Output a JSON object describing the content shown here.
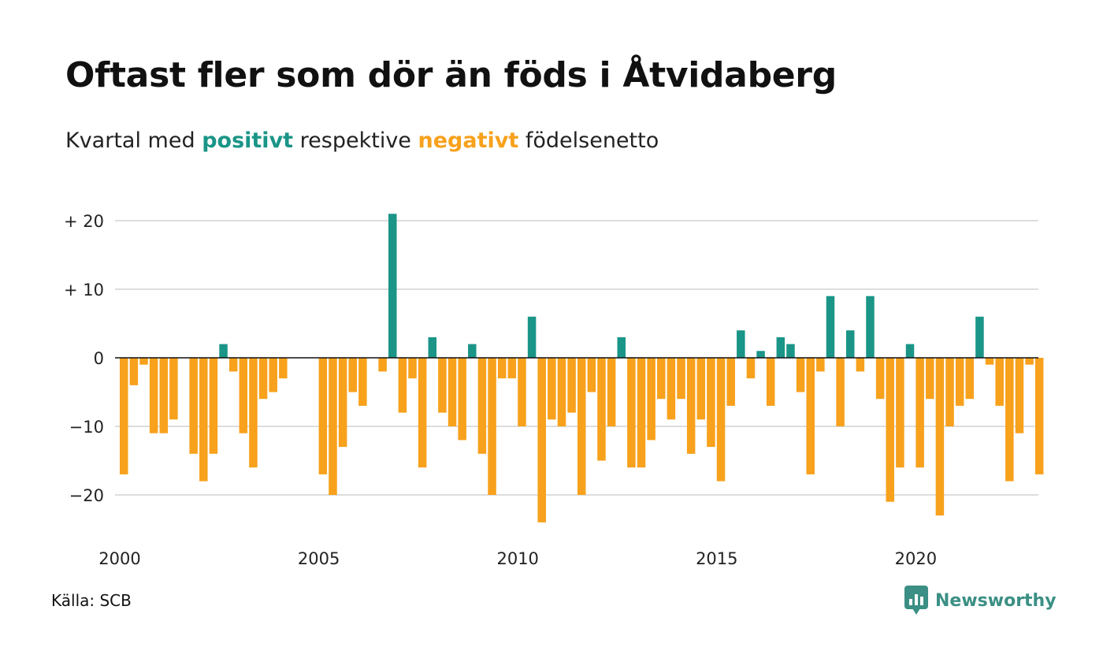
{
  "page": {
    "title": "Oftast fler som dör än föds i Åtvidaberg",
    "subtitle_parts": [
      "Kvartal med",
      "positivt",
      "respektive",
      "negativt",
      "födelsenetto"
    ],
    "source": "Källa: SCB",
    "brand": "Newsworthy",
    "colors": {
      "positive": "#1a9587",
      "negative": "#f7a11c",
      "brand": "#3b8f84",
      "grid": "#dddddd",
      "zero_line": "#111111"
    }
  },
  "chart_data": {
    "type": "bar",
    "title": "Oftast fler som dör än föds i Åtvidaberg",
    "subtitle": "Kvartal med positivt respektive negativt födelsenetto",
    "xlabel": "",
    "ylabel": "",
    "x_start_year": 2000,
    "quarters_per_year": 4,
    "xticks": [
      "2000",
      "2005",
      "2010",
      "2015",
      "2020"
    ],
    "yticks": [
      {
        "value": 20,
        "label": "+ 20"
      },
      {
        "value": 10,
        "label": "+ 10"
      },
      {
        "value": 0,
        "label": "0"
      },
      {
        "value": -10,
        "label": "−10"
      },
      {
        "value": -20,
        "label": "−20"
      }
    ],
    "ylim": [
      -26,
      22
    ],
    "grid": true,
    "legend": "none",
    "values": [
      -17,
      -4,
      -1,
      -11,
      -11,
      -9,
      0,
      -14,
      -18,
      -14,
      2,
      -2,
      -11,
      -16,
      -6,
      -5,
      -3,
      0,
      0,
      0,
      -17,
      -20,
      -13,
      -5,
      -7,
      0,
      -2,
      21,
      -8,
      -3,
      -16,
      3,
      -8,
      -10,
      -12,
      2,
      -14,
      -20,
      -3,
      -3,
      -10,
      6,
      -24,
      -9,
      -10,
      -8,
      -20,
      -5,
      -15,
      -10,
      3,
      -16,
      -16,
      -12,
      -6,
      -9,
      -6,
      -14,
      -9,
      -13,
      -18,
      -7,
      4,
      -3,
      1,
      -7,
      3,
      2,
      -5,
      -17,
      -2,
      9,
      -10,
      4,
      -2,
      9,
      -6,
      -21,
      -16,
      2,
      -16,
      -6,
      -23,
      -10,
      -7,
      -6,
      6,
      -1,
      -7,
      -18,
      -11,
      -1,
      -17
    ]
  }
}
